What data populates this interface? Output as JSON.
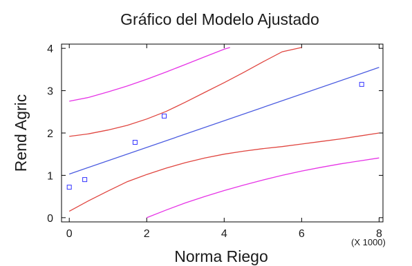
{
  "chart_data": {
    "type": "line",
    "title": "Gráfico del Modelo Ajustado",
    "xlabel": "Norma Riego",
    "ylabel": "Rend Agric",
    "x_multiplier": "(X 1000)",
    "xlim": [
      -0.2,
      8.1
    ],
    "ylim": [
      -0.1,
      4.1
    ],
    "xticks": [
      "0",
      "2",
      "4",
      "6",
      "8"
    ],
    "yticks": [
      "0",
      "1",
      "2",
      "3",
      "4"
    ],
    "grid": false,
    "points": {
      "color": "#3333ff",
      "x": [
        0.0,
        0.4,
        1.7,
        2.45,
        7.55
      ],
      "y": [
        0.72,
        0.9,
        1.78,
        2.4,
        3.15
      ]
    },
    "series": [
      {
        "role": "fit",
        "color": "#4a5be0",
        "x": [
          0.0,
          8.0
        ],
        "y": [
          1.03,
          3.55
        ]
      },
      {
        "role": "confidence-upper",
        "color": "#e0453f",
        "x": [
          0.0,
          0.5,
          1.0,
          1.5,
          2.0,
          2.5,
          3.0,
          3.5,
          4.0,
          4.5,
          5.0,
          5.5,
          6.0
        ],
        "y": [
          1.92,
          1.98,
          2.07,
          2.18,
          2.33,
          2.51,
          2.73,
          2.96,
          3.19,
          3.43,
          3.68,
          3.92,
          4.02
        ]
      },
      {
        "role": "confidence-lower",
        "color": "#e0453f",
        "x": [
          0.0,
          0.5,
          1.0,
          1.5,
          2.0,
          2.5,
          3.0,
          3.5,
          4.0,
          4.5,
          5.0,
          5.5,
          6.0,
          6.5,
          7.0,
          7.5,
          8.0
        ],
        "y": [
          0.15,
          0.4,
          0.63,
          0.85,
          1.02,
          1.17,
          1.3,
          1.41,
          1.5,
          1.57,
          1.63,
          1.68,
          1.74,
          1.8,
          1.86,
          1.93,
          2.0
        ]
      },
      {
        "role": "prediction-upper",
        "color": "#e633e6",
        "x": [
          0.0,
          0.5,
          1.0,
          1.5,
          2.0,
          2.5,
          3.0,
          3.5,
          4.0,
          4.15
        ],
        "y": [
          2.75,
          2.84,
          2.97,
          3.11,
          3.27,
          3.44,
          3.62,
          3.8,
          3.98,
          4.02
        ]
      },
      {
        "role": "prediction-lower",
        "color": "#e633e6",
        "x": [
          2.0,
          2.5,
          3.0,
          3.5,
          4.0,
          4.5,
          5.0,
          5.5,
          6.0,
          6.5,
          7.0,
          7.5,
          8.0
        ],
        "y": [
          0.0,
          0.18,
          0.35,
          0.5,
          0.64,
          0.77,
          0.89,
          1.0,
          1.1,
          1.19,
          1.27,
          1.34,
          1.41
        ]
      }
    ]
  }
}
